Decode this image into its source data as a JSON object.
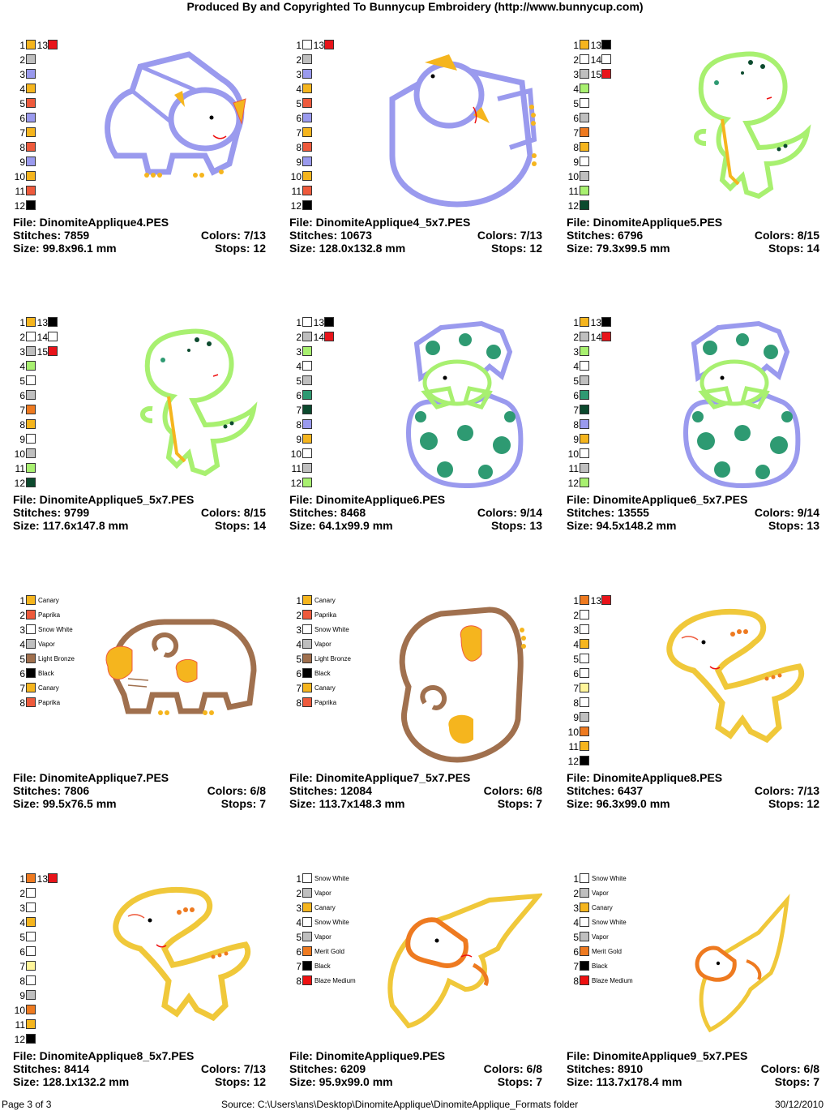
{
  "header": "Produced By and Copyrighted To Bunnycup Embroidery (http://www.bunnycup.com)",
  "labels": {
    "file": "File:",
    "stitches": "Stitches:",
    "colors": "Colors:",
    "size": "Size:",
    "stops": "Stops:"
  },
  "colors": {
    "orange": "#f5b51e",
    "gray": "#bfbfbf",
    "periwinkle": "#9a9aee",
    "red_orange": "#ee5a3c",
    "black": "#000000",
    "white": "#ffffff",
    "red": "#e8141a",
    "lime": "#a8f070",
    "dark_green": "#0c4a2e",
    "teal": "#2e9a72",
    "bronze": "#a0704e",
    "dark_orange": "#ee7a20",
    "pale_yellow": "#fff59a",
    "blaze": "#ee1111"
  },
  "designs": [
    {
      "file": "DinomiteApplique4.PES",
      "stitches": "7859",
      "colors": "7/13",
      "size": "99.8x96.1 mm",
      "stops": "12",
      "art": "triceratops-front",
      "swatches": [
        {
          "n": "1",
          "c": "orange",
          "n2": "13",
          "c2": "red"
        },
        {
          "n": "2",
          "c": "gray"
        },
        {
          "n": "3",
          "c": "periwinkle"
        },
        {
          "n": "4",
          "c": "orange"
        },
        {
          "n": "5",
          "c": "red_orange"
        },
        {
          "n": "6",
          "c": "periwinkle"
        },
        {
          "n": "7",
          "c": "orange"
        },
        {
          "n": "8",
          "c": "red_orange"
        },
        {
          "n": "9",
          "c": "periwinkle"
        },
        {
          "n": "10",
          "c": "orange"
        },
        {
          "n": "11",
          "c": "red_orange"
        },
        {
          "n": "12",
          "c": "black"
        }
      ]
    },
    {
      "file": "DinomiteApplique4_5x7.PES",
      "stitches": "10673",
      "colors": "7/13",
      "size": "128.0x132.8 mm",
      "stops": "12",
      "art": "triceratops-tilted",
      "swatches": [
        {
          "n": "1",
          "c": "white",
          "n2": "13",
          "c2": "red"
        },
        {
          "n": "2",
          "c": "gray"
        },
        {
          "n": "3",
          "c": "periwinkle"
        },
        {
          "n": "4",
          "c": "orange"
        },
        {
          "n": "5",
          "c": "red_orange"
        },
        {
          "n": "6",
          "c": "periwinkle"
        },
        {
          "n": "7",
          "c": "orange"
        },
        {
          "n": "8",
          "c": "red_orange"
        },
        {
          "n": "9",
          "c": "periwinkle"
        },
        {
          "n": "10",
          "c": "orange"
        },
        {
          "n": "11",
          "c": "red_orange"
        },
        {
          "n": "12",
          "c": "black"
        }
      ]
    },
    {
      "file": "DinomiteApplique5.PES",
      "stitches": "6796",
      "colors": "8/15",
      "size": "79.3x99.5 mm",
      "stops": "14",
      "art": "trex",
      "swatches": [
        {
          "n": "1",
          "c": "orange",
          "n2": "13",
          "c2": "black"
        },
        {
          "n": "2",
          "c": "white",
          "n2": "14",
          "c2": "white"
        },
        {
          "n": "3",
          "c": "gray",
          "n2": "15",
          "c2": "red"
        },
        {
          "n": "4",
          "c": "lime"
        },
        {
          "n": "5",
          "c": "white"
        },
        {
          "n": "6",
          "c": "gray"
        },
        {
          "n": "7",
          "c": "dark_orange"
        },
        {
          "n": "8",
          "c": "orange"
        },
        {
          "n": "9",
          "c": "white"
        },
        {
          "n": "10",
          "c": "gray"
        },
        {
          "n": "11",
          "c": "lime"
        },
        {
          "n": "12",
          "c": "dark_green"
        }
      ]
    },
    {
      "file": "DinomiteApplique5_5x7.PES",
      "stitches": "9799",
      "colors": "8/15",
      "size": "117.6x147.8 mm",
      "stops": "14",
      "art": "trex",
      "swatches": [
        {
          "n": "1",
          "c": "orange",
          "n2": "13",
          "c2": "black"
        },
        {
          "n": "2",
          "c": "white",
          "n2": "14",
          "c2": "white"
        },
        {
          "n": "3",
          "c": "gray",
          "n2": "15",
          "c2": "red"
        },
        {
          "n": "4",
          "c": "lime"
        },
        {
          "n": "5",
          "c": "white"
        },
        {
          "n": "6",
          "c": "gray"
        },
        {
          "n": "7",
          "c": "dark_orange"
        },
        {
          "n": "8",
          "c": "orange"
        },
        {
          "n": "9",
          "c": "white"
        },
        {
          "n": "10",
          "c": "gray"
        },
        {
          "n": "11",
          "c": "lime"
        },
        {
          "n": "12",
          "c": "dark_green"
        }
      ]
    },
    {
      "file": "DinomiteApplique6.PES",
      "stitches": "8468",
      "colors": "9/14",
      "size": "64.1x99.9 mm",
      "stops": "13",
      "art": "egg",
      "swatches": [
        {
          "n": "1",
          "c": "white",
          "n2": "13",
          "c2": "black"
        },
        {
          "n": "2",
          "c": "gray",
          "n2": "14",
          "c2": "red"
        },
        {
          "n": "3",
          "c": "lime"
        },
        {
          "n": "4",
          "c": "white"
        },
        {
          "n": "5",
          "c": "gray"
        },
        {
          "n": "6",
          "c": "teal"
        },
        {
          "n": "7",
          "c": "dark_green"
        },
        {
          "n": "8",
          "c": "periwinkle"
        },
        {
          "n": "9",
          "c": "orange"
        },
        {
          "n": "10",
          "c": "white"
        },
        {
          "n": "11",
          "c": "gray"
        },
        {
          "n": "12",
          "c": "lime"
        }
      ]
    },
    {
      "file": "DinomiteApplique6_5x7.PES",
      "stitches": "13555",
      "colors": "9/14",
      "size": "94.5x148.2 mm",
      "stops": "13",
      "art": "egg",
      "swatches": [
        {
          "n": "1",
          "c": "orange",
          "n2": "13",
          "c2": "black"
        },
        {
          "n": "2",
          "c": "gray",
          "n2": "14",
          "c2": "red"
        },
        {
          "n": "3",
          "c": "lime"
        },
        {
          "n": "4",
          "c": "white"
        },
        {
          "n": "5",
          "c": "gray"
        },
        {
          "n": "6",
          "c": "teal"
        },
        {
          "n": "7",
          "c": "dark_green"
        },
        {
          "n": "8",
          "c": "periwinkle"
        },
        {
          "n": "9",
          "c": "orange"
        },
        {
          "n": "10",
          "c": "white"
        },
        {
          "n": "11",
          "c": "gray"
        },
        {
          "n": "12",
          "c": "lime"
        }
      ]
    },
    {
      "file": "DinomiteApplique7.PES",
      "stitches": "7806",
      "colors": "6/8",
      "size": "99.5x76.5 mm",
      "stops": "7",
      "art": "ammonite-front",
      "swatches": [
        {
          "n": "1",
          "c": "orange",
          "name": "Canary"
        },
        {
          "n": "2",
          "c": "red_orange",
          "name": "Paprika"
        },
        {
          "n": "3",
          "c": "white",
          "name": "Snow White"
        },
        {
          "n": "4",
          "c": "gray",
          "name": "Vapor"
        },
        {
          "n": "5",
          "c": "bronze",
          "name": "Light Bronze"
        },
        {
          "n": "6",
          "c": "black",
          "name": "Black"
        },
        {
          "n": "7",
          "c": "orange",
          "name": "Canary"
        },
        {
          "n": "8",
          "c": "red_orange",
          "name": "Paprika"
        }
      ]
    },
    {
      "file": "DinomiteApplique7_5x7.PES",
      "stitches": "12084",
      "colors": "6/8",
      "size": "113.7x148.3 mm",
      "stops": "7",
      "art": "ammonite-tilted",
      "swatches": [
        {
          "n": "1",
          "c": "orange",
          "name": "Canary"
        },
        {
          "n": "2",
          "c": "red_orange",
          "name": "Paprika"
        },
        {
          "n": "3",
          "c": "white",
          "name": "Snow White"
        },
        {
          "n": "4",
          "c": "gray",
          "name": "Vapor"
        },
        {
          "n": "5",
          "c": "bronze",
          "name": "Light Bronze"
        },
        {
          "n": "6",
          "c": "black",
          "name": "Black"
        },
        {
          "n": "7",
          "c": "orange",
          "name": "Canary"
        },
        {
          "n": "8",
          "c": "red_orange",
          "name": "Paprika"
        }
      ]
    },
    {
      "file": "DinomiteApplique8.PES",
      "stitches": "6437",
      "colors": "7/13",
      "size": "96.3x99.0 mm",
      "stops": "12",
      "art": "brontosaurus",
      "swatches": [
        {
          "n": "1",
          "c": "dark_orange",
          "n2": "13",
          "c2": "red"
        },
        {
          "n": "2",
          "c": "white"
        },
        {
          "n": "3",
          "c": "white"
        },
        {
          "n": "4",
          "c": "orange"
        },
        {
          "n": "5",
          "c": "white"
        },
        {
          "n": "6",
          "c": "white"
        },
        {
          "n": "7",
          "c": "pale_yellow"
        },
        {
          "n": "8",
          "c": "white"
        },
        {
          "n": "9",
          "c": "gray"
        },
        {
          "n": "10",
          "c": "dark_orange"
        },
        {
          "n": "11",
          "c": "orange"
        },
        {
          "n": "12",
          "c": "black"
        }
      ]
    },
    {
      "file": "DinomiteApplique8_5x7.PES",
      "stitches": "8414",
      "colors": "7/13",
      "size": "128.1x132.2 mm",
      "stops": "12",
      "art": "brontosaurus",
      "swatches": [
        {
          "n": "1",
          "c": "dark_orange",
          "n2": "13",
          "c2": "red"
        },
        {
          "n": "2",
          "c": "white"
        },
        {
          "n": "3",
          "c": "white"
        },
        {
          "n": "4",
          "c": "orange"
        },
        {
          "n": "5",
          "c": "white"
        },
        {
          "n": "6",
          "c": "white"
        },
        {
          "n": "7",
          "c": "pale_yellow"
        },
        {
          "n": "8",
          "c": "white"
        },
        {
          "n": "9",
          "c": "gray"
        },
        {
          "n": "10",
          "c": "dark_orange"
        },
        {
          "n": "11",
          "c": "orange"
        },
        {
          "n": "12",
          "c": "black"
        }
      ]
    },
    {
      "file": "DinomiteApplique9.PES",
      "stitches": "6209",
      "colors": "6/8",
      "size": "95.9x99.0 mm",
      "stops": "7",
      "art": "pterodactyl",
      "swatches": [
        {
          "n": "1",
          "c": "white",
          "name": "Snow White"
        },
        {
          "n": "2",
          "c": "gray",
          "name": "Vapor"
        },
        {
          "n": "3",
          "c": "orange",
          "name": "Canary"
        },
        {
          "n": "4",
          "c": "white",
          "name": "Snow White"
        },
        {
          "n": "5",
          "c": "gray",
          "name": "Vapor"
        },
        {
          "n": "6",
          "c": "dark_orange",
          "name": "Merit Gold"
        },
        {
          "n": "7",
          "c": "black",
          "name": "Black"
        },
        {
          "n": "8",
          "c": "blaze",
          "name": "Blaze Medium"
        }
      ]
    },
    {
      "file": "DinomiteApplique9_5x7.PES",
      "stitches": "8910",
      "colors": "6/8",
      "size": "113.7x178.4 mm",
      "stops": "7",
      "art": "pterodactyl-small",
      "swatches": [
        {
          "n": "1",
          "c": "white",
          "name": "Snow White"
        },
        {
          "n": "2",
          "c": "gray",
          "name": "Vapor"
        },
        {
          "n": "3",
          "c": "orange",
          "name": "Canary"
        },
        {
          "n": "4",
          "c": "white",
          "name": "Snow White"
        },
        {
          "n": "5",
          "c": "gray",
          "name": "Vapor"
        },
        {
          "n": "6",
          "c": "dark_orange",
          "name": "Merit Gold"
        },
        {
          "n": "7",
          "c": "black",
          "name": "Black"
        },
        {
          "n": "8",
          "c": "blaze",
          "name": "Blaze Medium"
        }
      ]
    }
  ],
  "footer": {
    "page": "Page 3 of 3",
    "source": "Source: C:\\Users\\ans\\Desktop\\DinomiteApplique\\DinomiteApplique_Formats folder",
    "date": "30/12/2010"
  }
}
